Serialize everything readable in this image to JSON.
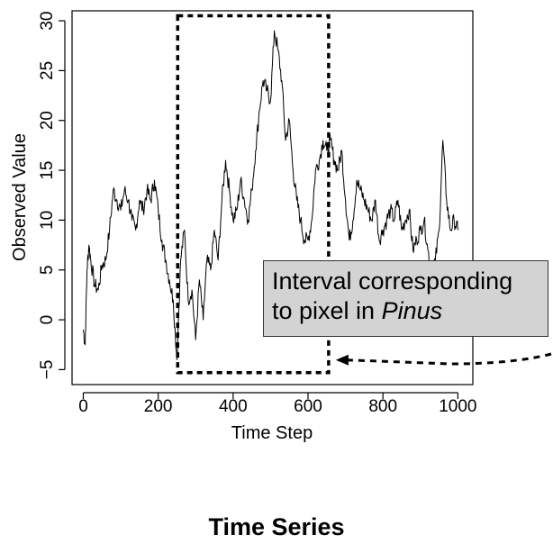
{
  "chart_data": {
    "type": "line",
    "xlabel": "Time Step",
    "ylabel": "Observed Value",
    "xlim": [
      -30,
      1040
    ],
    "ylim": [
      -6.5,
      31
    ],
    "x_ticks": [
      0,
      200,
      400,
      600,
      800,
      1000
    ],
    "y_ticks": [
      -5,
      0,
      5,
      10,
      15,
      20,
      25,
      30
    ],
    "x_tick_labels": [
      "0",
      "200",
      "400",
      "600",
      "800",
      "1000"
    ],
    "y_tick_labels": [
      "−5",
      "0",
      "5",
      "10",
      "15",
      "20",
      "25",
      "30"
    ],
    "grid": false,
    "series": [
      {
        "x": [
          0,
          5,
          10,
          15,
          20,
          30,
          40,
          50,
          60,
          70,
          80,
          90,
          100,
          110,
          120,
          130,
          140,
          150,
          160,
          170,
          180,
          190,
          200,
          210,
          220,
          230,
          240,
          250,
          260,
          270,
          280,
          290,
          300,
          310,
          320,
          330,
          340,
          350,
          360,
          370,
          380,
          390,
          400,
          410,
          420,
          430,
          440,
          450,
          460,
          470,
          480,
          490,
          500,
          510,
          520,
          530,
          540,
          550,
          560,
          570,
          580,
          590,
          600,
          610,
          620,
          630,
          640,
          650,
          660,
          670,
          680,
          690,
          700,
          710,
          720,
          730,
          740,
          750,
          760,
          770,
          780,
          790,
          800,
          810,
          820,
          830,
          840,
          850,
          860,
          870,
          880,
          890,
          900,
          910,
          920,
          930,
          940,
          950,
          960,
          970,
          980,
          990,
          1000
        ],
        "y": [
          -1,
          -2.5,
          5,
          7.5,
          6,
          3.5,
          3,
          5.5,
          6,
          9,
          13,
          12,
          11,
          13,
          12,
          10,
          9,
          12,
          11,
          13,
          12,
          14,
          11,
          8,
          6,
          4,
          2,
          -4,
          6,
          9,
          2,
          3,
          -2,
          4,
          0,
          6,
          5,
          9,
          6,
          12,
          16,
          13,
          10,
          11,
          14,
          12,
          10,
          13,
          17,
          21,
          24,
          23,
          22,
          29,
          27,
          24,
          18,
          20,
          15,
          12,
          10,
          8,
          8,
          10,
          15,
          16,
          18,
          17,
          18,
          16,
          15,
          17,
          12,
          8,
          10,
          14,
          13,
          12,
          11,
          10,
          12,
          8,
          9,
          10,
          11,
          10,
          12,
          9,
          10,
          11,
          7,
          8,
          9,
          10,
          7,
          5,
          6,
          9,
          18,
          12,
          9,
          10,
          9
        ],
        "color": "#000000"
      }
    ],
    "annotations": [
      {
        "type": "dashed-rectangle",
        "x_range": [
          252,
          655
        ],
        "y_range": [
          -5.3,
          30.5
        ]
      },
      {
        "type": "callout-box",
        "text_line1": "Interval corresponding",
        "text_line2_prefix": "to pixel in ",
        "text_line2_emphasis": "Pinus",
        "fill": "#d3d3d3"
      },
      {
        "type": "dashed-arrow",
        "points_to": "dashed-rectangle"
      }
    ],
    "caption": "Time Series"
  }
}
